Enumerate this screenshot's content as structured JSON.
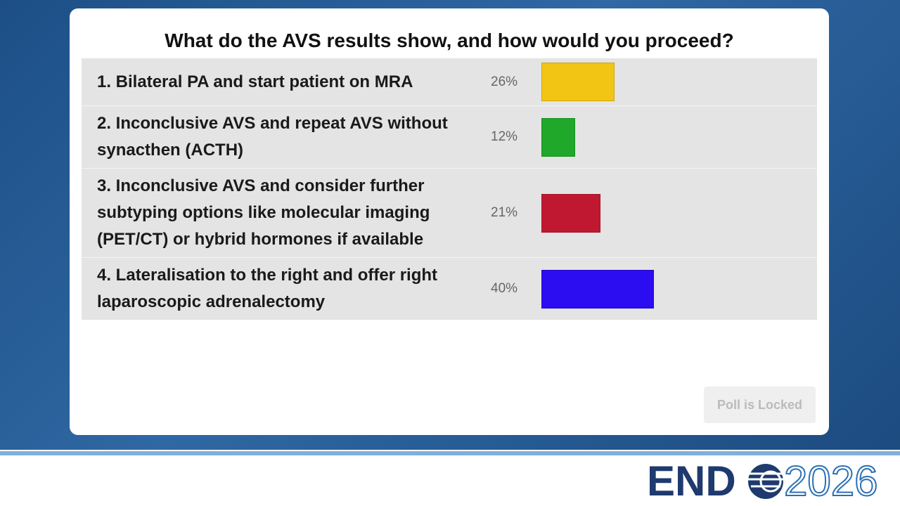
{
  "chart_data": {
    "type": "bar",
    "orientation": "horizontal",
    "title": "What do the AVS results show, and how would you proceed?",
    "categories": [
      "1. Bilateral PA and start patient on MRA",
      "2. Inconclusive AVS and repeat AVS without synacthen (ACTH)",
      "3. Inconclusive AVS and consider further subtyping options like molecular imaging (PET/CT) or hybrid hormones if available",
      "4. Lateralisation to the right and offer right laparoscopic adrenalectomy"
    ],
    "values": [
      26,
      12,
      21,
      40
    ],
    "value_labels": [
      "26%",
      "12%",
      "21%",
      "40%"
    ],
    "colors": [
      "#f2c414",
      "#1fa82a",
      "#c01830",
      "#2c0cf0"
    ]
  },
  "poll_button": "Poll is Locked",
  "logo": {
    "word": "END",
    "year": "2026"
  }
}
